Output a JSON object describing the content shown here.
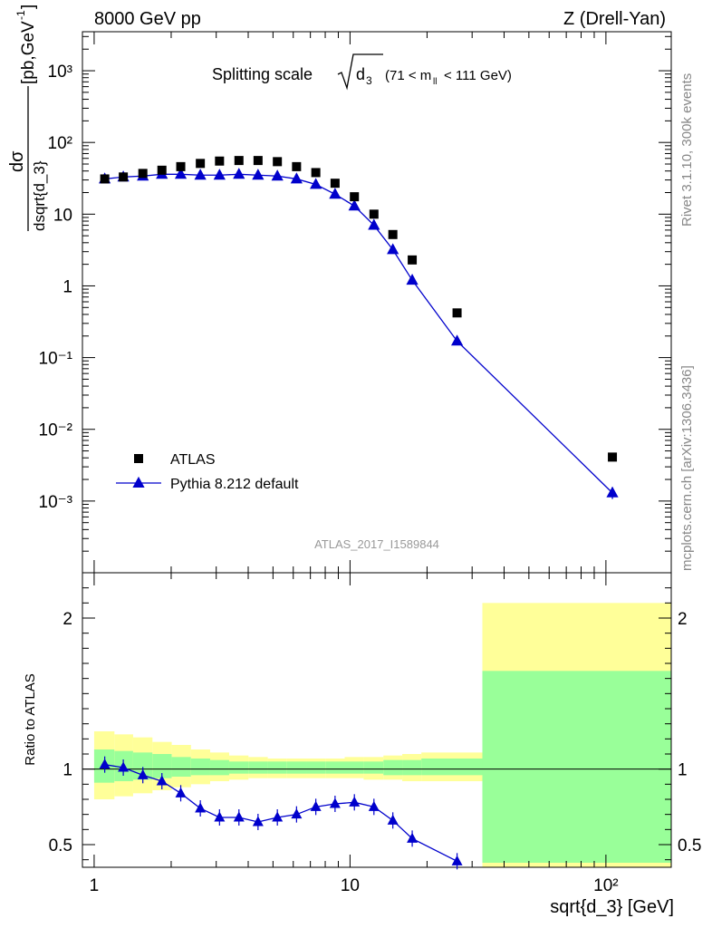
{
  "header": {
    "energy": "8000 GeV pp",
    "process": "Z (Drell-Yan)",
    "side_rivet": "Rivet 3.1.10,  300k events",
    "side_mcplots": "mcplots.cern.ch [arXiv:1306.3436]",
    "analysis_id": "ATLAS_2017_I1589844"
  },
  "chart_data": [
    {
      "type": "scatter",
      "title": "Splitting scale √d3 (71 < m_ll < 111 GeV)",
      "xlabel": "sqrt{d_3} [GeV]",
      "ylabel": "dσ / dsqrt{d_3} [pb,GeV⁻¹]",
      "xscale": "log",
      "yscale": "log",
      "xlim": [
        0.9,
        180
      ],
      "ylim": [
        0.0001,
        3500
      ],
      "legend_position": "lower-left",
      "x_tick_labels": [
        "1",
        "10",
        "10²"
      ],
      "y_tick_labels": [
        "10⁻³",
        "10⁻²",
        "10⁻¹",
        "1",
        "10",
        "10²",
        "10³"
      ],
      "series": [
        {
          "name": "ATLAS",
          "color": "#000000",
          "marker": "square",
          "x": [
            1.1,
            1.3,
            1.55,
            1.84,
            2.18,
            2.6,
            3.09,
            3.68,
            4.37,
            5.2,
            6.18,
            7.35,
            8.74,
            10.4,
            12.4,
            14.7,
            17.5,
            26.2,
            106
          ],
          "y": [
            31,
            33,
            37,
            41,
            46,
            51,
            55,
            56,
            56,
            54,
            46,
            38,
            27,
            17.5,
            10,
            5.2,
            2.3,
            0.42,
            0.0041
          ]
        },
        {
          "name": "Pythia 8.212 default",
          "color": "#0000cc",
          "marker": "triangle",
          "x": [
            1.1,
            1.3,
            1.55,
            1.84,
            2.18,
            2.6,
            3.09,
            3.68,
            4.37,
            5.2,
            6.18,
            7.35,
            8.74,
            10.4,
            12.4,
            14.7,
            17.5,
            26.2,
            106
          ],
          "y": [
            31,
            33,
            34,
            36,
            36,
            35,
            35,
            36,
            35,
            34,
            31,
            26,
            19,
            13,
            7,
            3.2,
            1.2,
            0.17,
            0.0013
          ]
        }
      ]
    },
    {
      "type": "line",
      "ylabel": "Ratio to ATLAS",
      "xscale": "log",
      "xlim": [
        0.9,
        180
      ],
      "ylim": [
        0.35,
        2.3
      ],
      "y_tick_labels": [
        "0.5",
        "1",
        "2"
      ],
      "reference_line": 1,
      "uncertainty_bands": {
        "x_edges": [
          1,
          1.2,
          1.42,
          1.69,
          2.01,
          2.39,
          2.84,
          3.37,
          4.01,
          4.77,
          5.67,
          6.74,
          8.02,
          9.53,
          11.3,
          13.5,
          16,
          19,
          32.9,
          180
        ],
        "yellow_low": [
          0.8,
          0.82,
          0.84,
          0.86,
          0.88,
          0.9,
          0.92,
          0.93,
          0.94,
          0.94,
          0.94,
          0.94,
          0.94,
          0.94,
          0.93,
          0.93,
          0.92,
          0.92,
          0.35
        ],
        "yellow_high": [
          1.25,
          1.23,
          1.21,
          1.18,
          1.16,
          1.13,
          1.11,
          1.09,
          1.08,
          1.07,
          1.07,
          1.07,
          1.07,
          1.08,
          1.08,
          1.09,
          1.1,
          1.11,
          2.1
        ],
        "green_low": [
          0.91,
          0.92,
          0.93,
          0.94,
          0.95,
          0.96,
          0.96,
          0.97,
          0.97,
          0.97,
          0.97,
          0.97,
          0.97,
          0.97,
          0.97,
          0.96,
          0.96,
          0.96,
          0.38
        ],
        "green_high": [
          1.13,
          1.12,
          1.11,
          1.1,
          1.08,
          1.07,
          1.06,
          1.05,
          1.05,
          1.05,
          1.05,
          1.05,
          1.05,
          1.05,
          1.05,
          1.06,
          1.06,
          1.07,
          1.65
        ],
        "yellow_color": "#ffff99",
        "green_color": "#99ff99"
      },
      "series": [
        {
          "name": "Pythia 8.212 default",
          "color": "#0000cc",
          "marker": "triangle",
          "x": [
            1.1,
            1.3,
            1.55,
            1.84,
            2.18,
            2.6,
            3.09,
            3.68,
            4.37,
            5.2,
            6.18,
            7.35,
            8.74,
            10.4,
            12.4,
            14.7,
            17.5,
            26.2
          ],
          "y": [
            1.03,
            1.01,
            0.96,
            0.92,
            0.84,
            0.74,
            0.68,
            0.68,
            0.65,
            0.68,
            0.7,
            0.75,
            0.77,
            0.78,
            0.75,
            0.66,
            0.54,
            0.39
          ]
        }
      ]
    }
  ]
}
